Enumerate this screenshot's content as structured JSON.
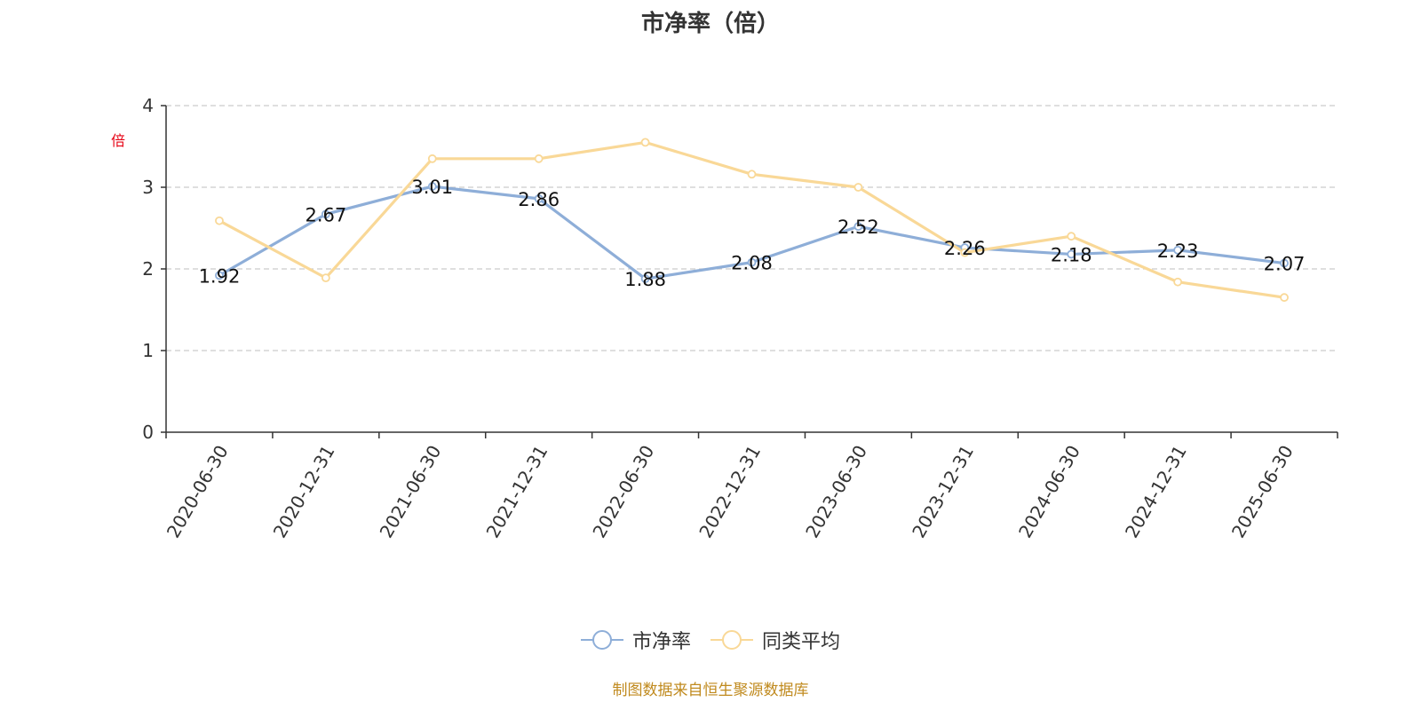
{
  "chart_data": {
    "type": "line",
    "title": "市净率（倍）",
    "ylabel": "倍",
    "ylim": [
      0,
      4
    ],
    "yticks": [
      0,
      1,
      2,
      3,
      4
    ],
    "grid": true,
    "legend_position": "bottom-center",
    "categories": [
      "2020-06-30",
      "2020-12-31",
      "2021-06-30",
      "2021-12-31",
      "2022-06-30",
      "2022-12-31",
      "2023-06-30",
      "2023-12-31",
      "2024-06-30",
      "2024-12-31",
      "2025-06-30"
    ],
    "series": [
      {
        "name": "市净率",
        "color": "#8eaed8",
        "values": [
          1.92,
          2.67,
          3.01,
          2.86,
          1.88,
          2.08,
          2.52,
          2.26,
          2.18,
          2.23,
          2.07
        ],
        "labels": [
          "1.92",
          "2.67",
          "3.01",
          "2.86",
          "1.88",
          "2.08",
          "2.52",
          "2.26",
          "2.18",
          "2.23",
          "2.07"
        ]
      },
      {
        "name": "同类平均",
        "color": "#f9d897",
        "values": [
          2.59,
          1.89,
          3.35,
          3.35,
          3.55,
          3.16,
          3.0,
          2.2,
          2.4,
          1.84,
          1.65
        ]
      }
    ],
    "source": "制图数据来自恒生聚源数据库"
  }
}
